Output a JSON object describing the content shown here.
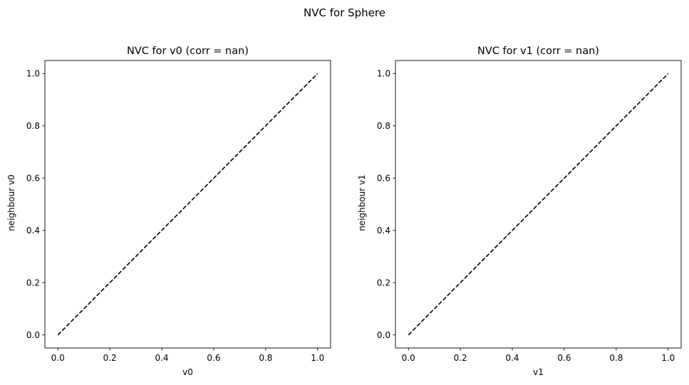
{
  "figure": {
    "suptitle": "NVC for Sphere"
  },
  "chart_data": [
    {
      "type": "line",
      "title": "NVC for v0 (corr = nan)",
      "xlabel": "v0",
      "ylabel": "neighbour v0",
      "xlim": [
        -0.05,
        1.05
      ],
      "ylim": [
        -0.05,
        1.05
      ],
      "xticks": [
        0.0,
        0.2,
        0.4,
        0.6,
        0.8,
        1.0
      ],
      "yticks": [
        0.0,
        0.2,
        0.4,
        0.6,
        0.8,
        1.0
      ],
      "xtick_labels": [
        "0.0",
        "0.2",
        "0.4",
        "0.6",
        "0.8",
        "1.0"
      ],
      "ytick_labels": [
        "0.0",
        "0.2",
        "0.4",
        "0.6",
        "0.8",
        "1.0"
      ],
      "grid": false,
      "series": [
        {
          "x": [
            0.0,
            1.0
          ],
          "y": [
            0.0,
            1.0
          ],
          "style": "dashed",
          "color": "#000000"
        }
      ]
    },
    {
      "type": "line",
      "title": "NVC for v1 (corr = nan)",
      "xlabel": "v1",
      "ylabel": "neighbour v1",
      "xlim": [
        -0.05,
        1.05
      ],
      "ylim": [
        -0.05,
        1.05
      ],
      "xticks": [
        0.0,
        0.2,
        0.4,
        0.6,
        0.8,
        1.0
      ],
      "yticks": [
        0.0,
        0.2,
        0.4,
        0.6,
        0.8,
        1.0
      ],
      "xtick_labels": [
        "0.0",
        "0.2",
        "0.4",
        "0.6",
        "0.8",
        "1.0"
      ],
      "ytick_labels": [
        "0.0",
        "0.2",
        "0.4",
        "0.6",
        "0.8",
        "1.0"
      ],
      "grid": false,
      "series": [
        {
          "x": [
            0.0,
            1.0
          ],
          "y": [
            0.0,
            1.0
          ],
          "style": "dashed",
          "color": "#000000"
        }
      ]
    }
  ]
}
